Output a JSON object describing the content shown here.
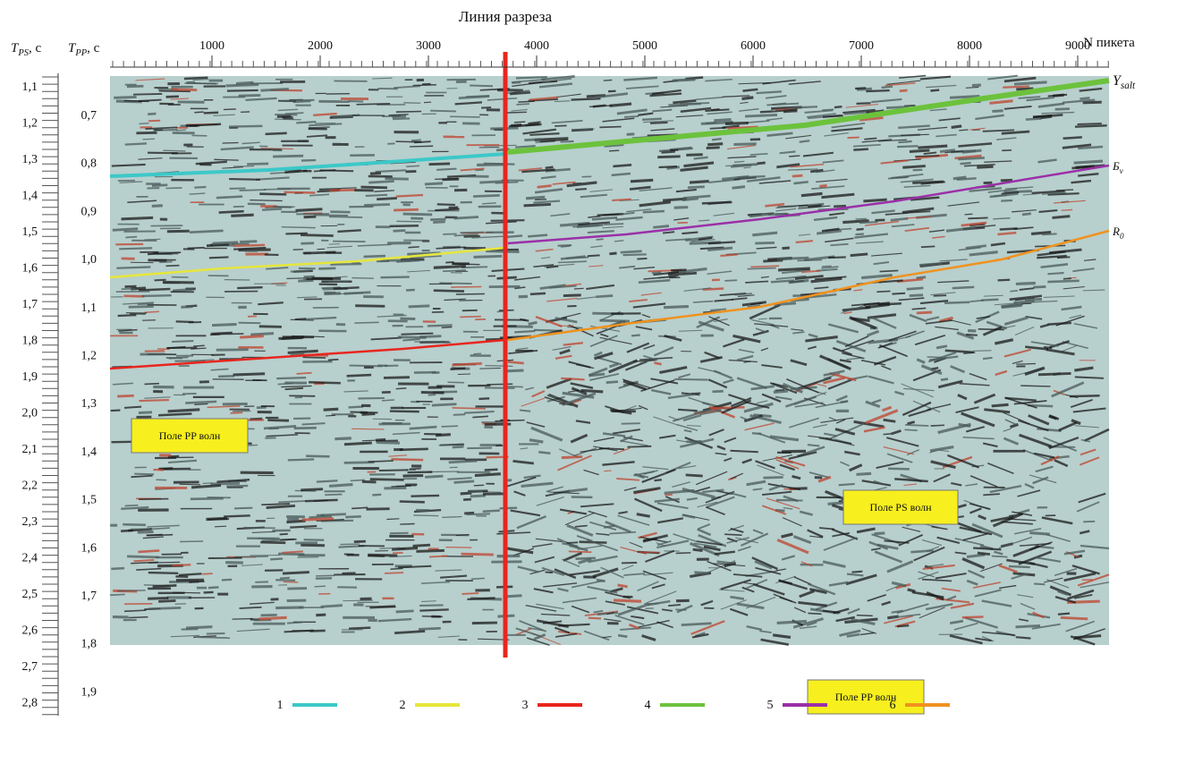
{
  "title": "Линия разреза",
  "axes": {
    "tps_label": {
      "symbol": "T",
      "sub": "PS",
      "unit": ", с"
    },
    "tpp_label": {
      "symbol": "T",
      "sub": "PP",
      "unit": ", с"
    },
    "x_label": "N пикета",
    "x_ticks": [
      "1000",
      "2000",
      "3000",
      "4000",
      "5000",
      "6000",
      "7000",
      "8000",
      "9000"
    ],
    "tps_ticks": [
      "1,1",
      "1,2",
      "1,3",
      "1,4",
      "1,5",
      "1,6",
      "1,7",
      "1,8",
      "1,9",
      "2,0",
      "2,1",
      "2,2",
      "2,3",
      "2,4",
      "2,5",
      "2,6",
      "2,7",
      "2,8"
    ],
    "tpp_ticks": [
      "0,7",
      "0,8",
      "0,9",
      "1,0",
      "1,1",
      "1,2",
      "1,3",
      "1,4",
      "1,5",
      "1,6",
      "1,7",
      "1,8",
      "1,9"
    ]
  },
  "horizon_labels": [
    {
      "symbol": "Y",
      "sub": "salt"
    },
    {
      "symbol": "Б",
      "sub": "v"
    },
    {
      "symbol": "R",
      "sub": "0"
    }
  ],
  "boxes": [
    "Поле PP волн",
    "Поле PS волн",
    "Поле PP волн"
  ],
  "legend": [
    {
      "label": "1",
      "color": "#3cc8c8"
    },
    {
      "label": "2",
      "color": "#e6e63c"
    },
    {
      "label": "3",
      "color": "#e8261e"
    },
    {
      "label": "4",
      "color": "#6cc23c"
    },
    {
      "label": "5",
      "color": "#9b2fa8"
    },
    {
      "label": "6",
      "color": "#f0921e"
    }
  ]
}
